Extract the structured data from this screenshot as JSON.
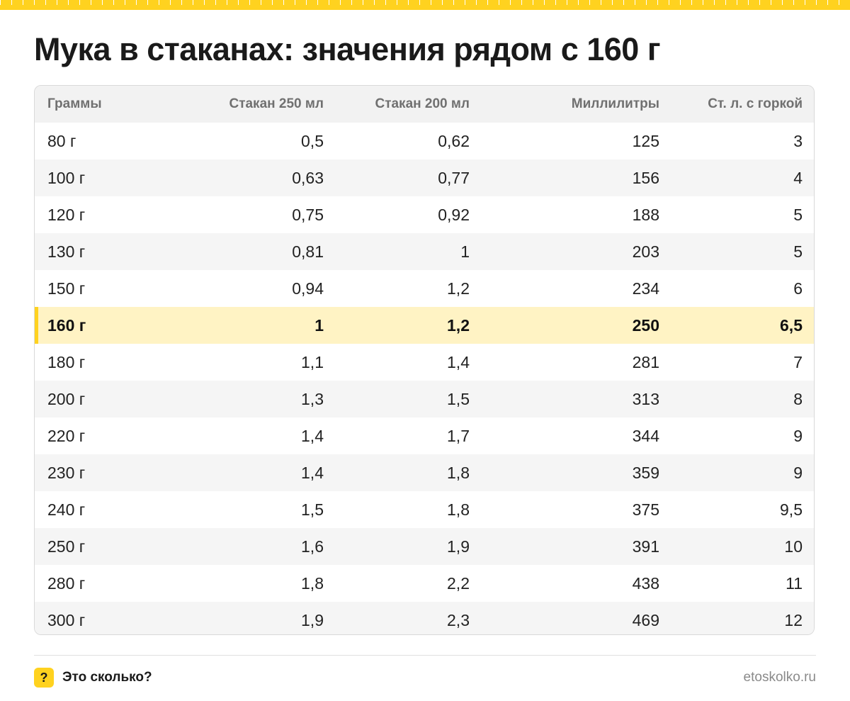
{
  "page": {
    "title": "Мука в стаканах: значения рядом с 160 г"
  },
  "table": {
    "headers": [
      "Граммы",
      "Стакан 250 мл",
      "Стакан 200 мл",
      "Миллилитры",
      "Ст. л. с горкой"
    ],
    "highlight_row": 5,
    "rows": [
      [
        "80 г",
        "0,5",
        "0,62",
        "125",
        "3"
      ],
      [
        "100 г",
        "0,63",
        "0,77",
        "156",
        "4"
      ],
      [
        "120 г",
        "0,75",
        "0,92",
        "188",
        "5"
      ],
      [
        "130 г",
        "0,81",
        "1",
        "203",
        "5"
      ],
      [
        "150 г",
        "0,94",
        "1,2",
        "234",
        "6"
      ],
      [
        "160 г",
        "1",
        "1,2",
        "250",
        "6,5"
      ],
      [
        "180 г",
        "1,1",
        "1,4",
        "281",
        "7"
      ],
      [
        "200 г",
        "1,3",
        "1,5",
        "313",
        "8"
      ],
      [
        "220 г",
        "1,4",
        "1,7",
        "344",
        "9"
      ],
      [
        "230 г",
        "1,4",
        "1,8",
        "359",
        "9"
      ],
      [
        "240 г",
        "1,5",
        "1,8",
        "375",
        "9,5"
      ],
      [
        "250 г",
        "1,6",
        "1,9",
        "391",
        "10"
      ],
      [
        "280 г",
        "1,8",
        "2,2",
        "438",
        "11"
      ],
      [
        "300 г",
        "1,9",
        "2,3",
        "469",
        "12"
      ]
    ]
  },
  "footer": {
    "badge_icon": "?",
    "brand": "Это сколько?",
    "site": "etoskolko.ru"
  },
  "colors": {
    "accent": "#ffd21f",
    "highlight_bg": "#fff3c4",
    "stripe_bg": "#f5f5f5"
  }
}
